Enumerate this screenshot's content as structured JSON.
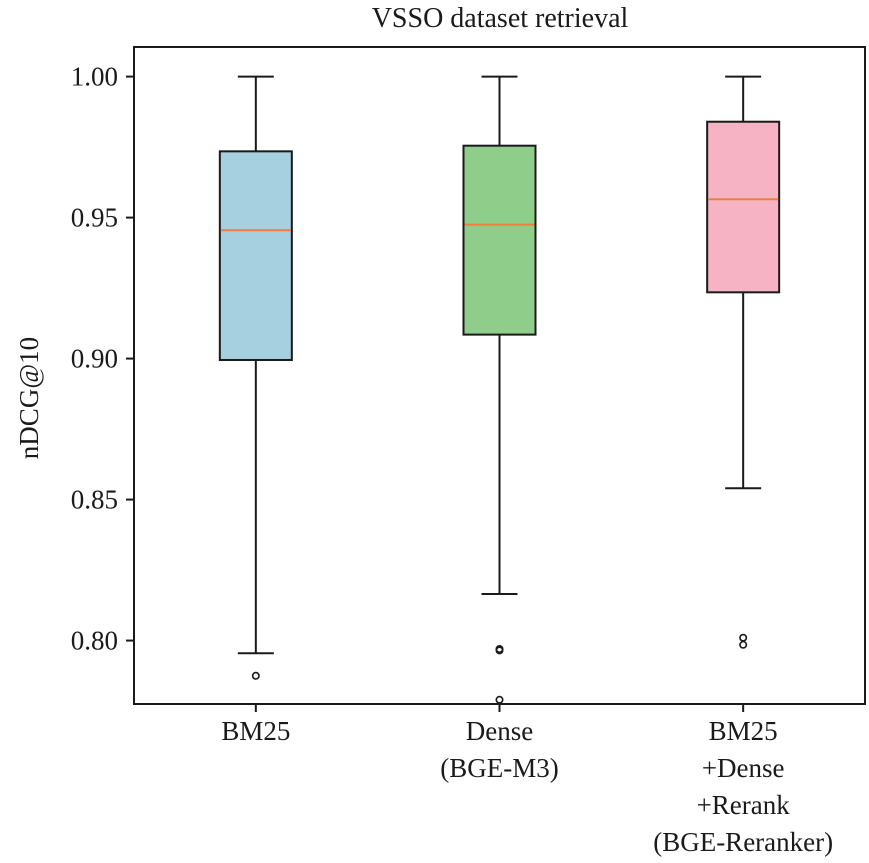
{
  "chart_data": {
    "type": "box",
    "title": "VSSO dataset retrieval",
    "xlabel": "",
    "ylabel": "nDCG@10",
    "ylim": [
      0.7775,
      1.0105
    ],
    "yticks": [
      "0.80",
      "0.85",
      "0.90",
      "0.95",
      "1.00"
    ],
    "ytick_values": [
      0.8,
      0.85,
      0.9,
      0.95,
      1.0
    ],
    "grid": false,
    "categories": [
      {
        "lines": [
          "BM25"
        ]
      },
      {
        "lines": [
          "Dense",
          "(BGE-M3)"
        ]
      },
      {
        "lines": [
          "BM25",
          "+Dense",
          "+Rerank",
          "(BGE-Reranker)"
        ]
      }
    ],
    "boxes": [
      {
        "whisker_low": 0.7955,
        "q1": 0.8995,
        "median": 0.9455,
        "q3": 0.9735,
        "whisker_high": 1.0,
        "outliers": [
          0.7875
        ],
        "color": "#a6cfdf"
      },
      {
        "whisker_low": 0.8165,
        "q1": 0.9085,
        "median": 0.9475,
        "q3": 0.9755,
        "whisker_high": 1.0,
        "outliers": [
          0.797,
          0.7965,
          0.779
        ],
        "color": "#8ecd8a"
      },
      {
        "whisker_low": 0.854,
        "q1": 0.9235,
        "median": 0.9565,
        "q3": 0.984,
        "whisker_high": 1.0,
        "outliers": [
          0.801,
          0.7985
        ],
        "color": "#f6b3c3"
      }
    ],
    "median_color": "#f07f3c"
  }
}
